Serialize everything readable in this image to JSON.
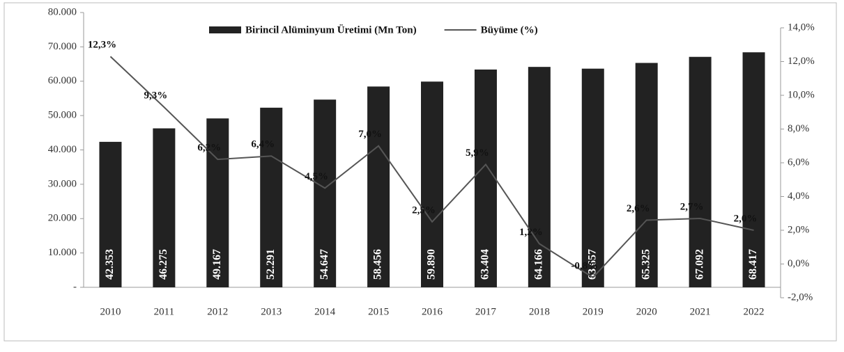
{
  "chart_data": {
    "type": "bar-line",
    "categories": [
      "2010",
      "2011",
      "2012",
      "2013",
      "2014",
      "2015",
      "2016",
      "2017",
      "2018",
      "2019",
      "2020",
      "2021",
      "2022"
    ],
    "series": [
      {
        "name": "Birincil Alüminyum Üretimi (Mn Ton)",
        "color": "#222222",
        "type": "bar",
        "values": [
          42353,
          46275,
          49167,
          52291,
          54647,
          58456,
          59890,
          63404,
          64166,
          63657,
          65325,
          67092,
          68417
        ],
        "value_labels": [
          "42.353",
          "46.275",
          "49.167",
          "52.291",
          "54.647",
          "58.456",
          "59.890",
          "63.404",
          "64.166",
          "63.657",
          "65.325",
          "67.092",
          "68.417"
        ]
      },
      {
        "name": "Büyüme (%)",
        "color": "#555555",
        "type": "line",
        "axis": "y2",
        "values": [
          12.3,
          9.3,
          6.2,
          6.4,
          4.5,
          7.0,
          2.5,
          5.9,
          1.2,
          -0.8,
          2.6,
          2.7,
          2.0
        ],
        "value_labels": [
          "12,3%",
          "9,3%",
          "6,2%",
          "6,4%",
          "4,5%",
          "7,0%",
          "2,5%",
          "5,9%",
          "1,2%",
          "-0,8%",
          "2,6%",
          "2,7%",
          "2,0%"
        ]
      }
    ],
    "ylim": [
      0,
      80000
    ],
    "yticks": [
      {
        "value": 0,
        "label": "-"
      },
      {
        "value": 10000,
        "label": "10.000"
      },
      {
        "value": 20000,
        "label": "20.000"
      },
      {
        "value": 30000,
        "label": "30.000"
      },
      {
        "value": 40000,
        "label": "40.000"
      },
      {
        "value": 50000,
        "label": "50.000"
      },
      {
        "value": 60000,
        "label": "60.000"
      },
      {
        "value": 70000,
        "label": "70.000"
      },
      {
        "value": 80000,
        "label": "80.000"
      }
    ],
    "y2lim": [
      -2,
      14
    ],
    "y2ticks": [
      {
        "value": -2,
        "label": "-2,0%"
      },
      {
        "value": 0,
        "label": "0,0%"
      },
      {
        "value": 2,
        "label": "2,0%"
      },
      {
        "value": 4,
        "label": "4,0%"
      },
      {
        "value": 6,
        "label": "6,0%"
      },
      {
        "value": 8,
        "label": "8,0%"
      },
      {
        "value": 10,
        "label": "10,0%"
      },
      {
        "value": 12,
        "label": "12,0%"
      },
      {
        "value": 14,
        "label": "14,0%"
      }
    ],
    "legend": "top"
  }
}
